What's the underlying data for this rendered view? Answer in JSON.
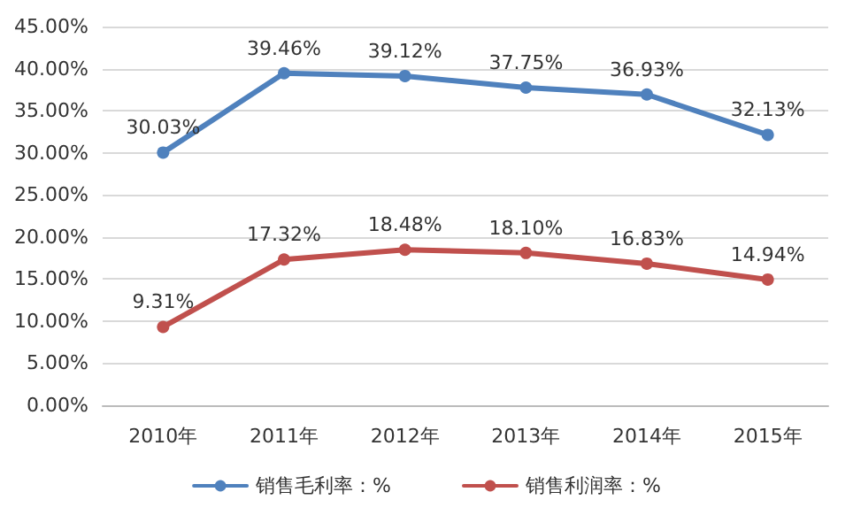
{
  "chart_data": {
    "type": "line",
    "categories": [
      "2010年",
      "2011年",
      "2012年",
      "2013年",
      "2014年",
      "2015年"
    ],
    "series": [
      {
        "name": "销售毛利率：%",
        "color": "#4f81bd",
        "values": [
          30.03,
          39.46,
          39.12,
          37.75,
          36.93,
          32.13
        ],
        "value_labels": [
          "30.03%",
          "39.46%",
          "39.12%",
          "37.75%",
          "36.93%",
          "32.13%"
        ]
      },
      {
        "name": "销售利润率：%",
        "color": "#c0504d",
        "values": [
          9.31,
          17.32,
          18.48,
          18.1,
          16.83,
          14.94
        ],
        "value_labels": [
          "9.31%",
          "17.32%",
          "18.48%",
          "18.10%",
          "16.83%",
          "14.94%"
        ]
      }
    ],
    "ylim": [
      0,
      45
    ],
    "yticks": [
      {
        "value": 0,
        "label": "0.00%"
      },
      {
        "value": 5,
        "label": "5.00%"
      },
      {
        "value": 10,
        "label": "10.00%"
      },
      {
        "value": 15,
        "label": "15.00%"
      },
      {
        "value": 20,
        "label": "20.00%"
      },
      {
        "value": 25,
        "label": "25.00%"
      },
      {
        "value": 30,
        "label": "30.00%"
      },
      {
        "value": 35,
        "label": "35.00%"
      },
      {
        "value": 40,
        "label": "40.00%"
      },
      {
        "value": 45,
        "label": "45.00%"
      }
    ],
    "grid": "y",
    "legend": "bottom",
    "marker": "circle",
    "line_style": "solid"
  }
}
